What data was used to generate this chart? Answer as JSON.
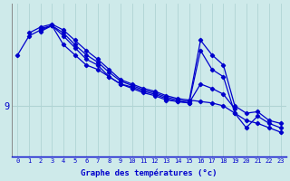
{
  "background_color": "#ceeaea",
  "plot_bg_color": "#ceeaea",
  "line_color": "#0000cc",
  "grid_color": "#b0d4d4",
  "xlabel": "Graphe des températures (°c)",
  "xlabel_color": "#0000cc",
  "ytick_label": "9",
  "ytick_color": "#0000cc",
  "xtick_labels": [
    "0",
    "1",
    "2",
    "3",
    "4",
    "5",
    "6",
    "7",
    "8",
    "9",
    "10",
    "11",
    "12",
    "13",
    "14",
    "15",
    "16",
    "17",
    "18",
    "19",
    "20",
    "21",
    "22",
    "23"
  ],
  "xtick_color": "#0000cc",
  "series": [
    [
      12.5,
      13.8,
      14.2,
      14.5,
      13.2,
      12.5,
      11.8,
      11.5,
      11.0,
      10.5,
      10.3,
      10.0,
      9.8,
      9.5,
      9.3,
      9.2,
      12.8,
      11.5,
      11.0,
      8.5,
      7.5,
      8.3,
      7.8,
      7.5
    ],
    [
      null,
      14.0,
      14.4,
      14.6,
      14.2,
      13.5,
      12.8,
      12.2,
      11.5,
      10.8,
      10.5,
      10.2,
      10.0,
      9.7,
      9.5,
      9.4,
      9.3,
      9.2,
      9.0,
      8.5,
      8.0,
      7.8,
      7.5,
      7.2
    ],
    [
      null,
      null,
      14.3,
      14.5,
      14.0,
      13.2,
      12.5,
      12.0,
      11.3,
      10.7,
      10.4,
      10.1,
      9.9,
      9.6,
      9.4,
      9.3,
      13.5,
      12.5,
      11.8,
      9.0,
      8.5,
      8.6,
      8.0,
      7.8
    ],
    [
      null,
      null,
      14.1,
      14.5,
      13.8,
      13.0,
      12.2,
      11.8,
      11.0,
      10.5,
      10.2,
      9.9,
      9.7,
      9.4,
      9.3,
      9.2,
      10.5,
      10.2,
      9.8,
      8.8,
      null,
      null,
      null,
      null
    ]
  ],
  "xmin": -0.5,
  "xmax": 23.5,
  "ymin": 5.5,
  "ymax": 16.0,
  "ytick_val": 9.0,
  "figsize": [
    3.2,
    2.0
  ],
  "dpi": 100
}
